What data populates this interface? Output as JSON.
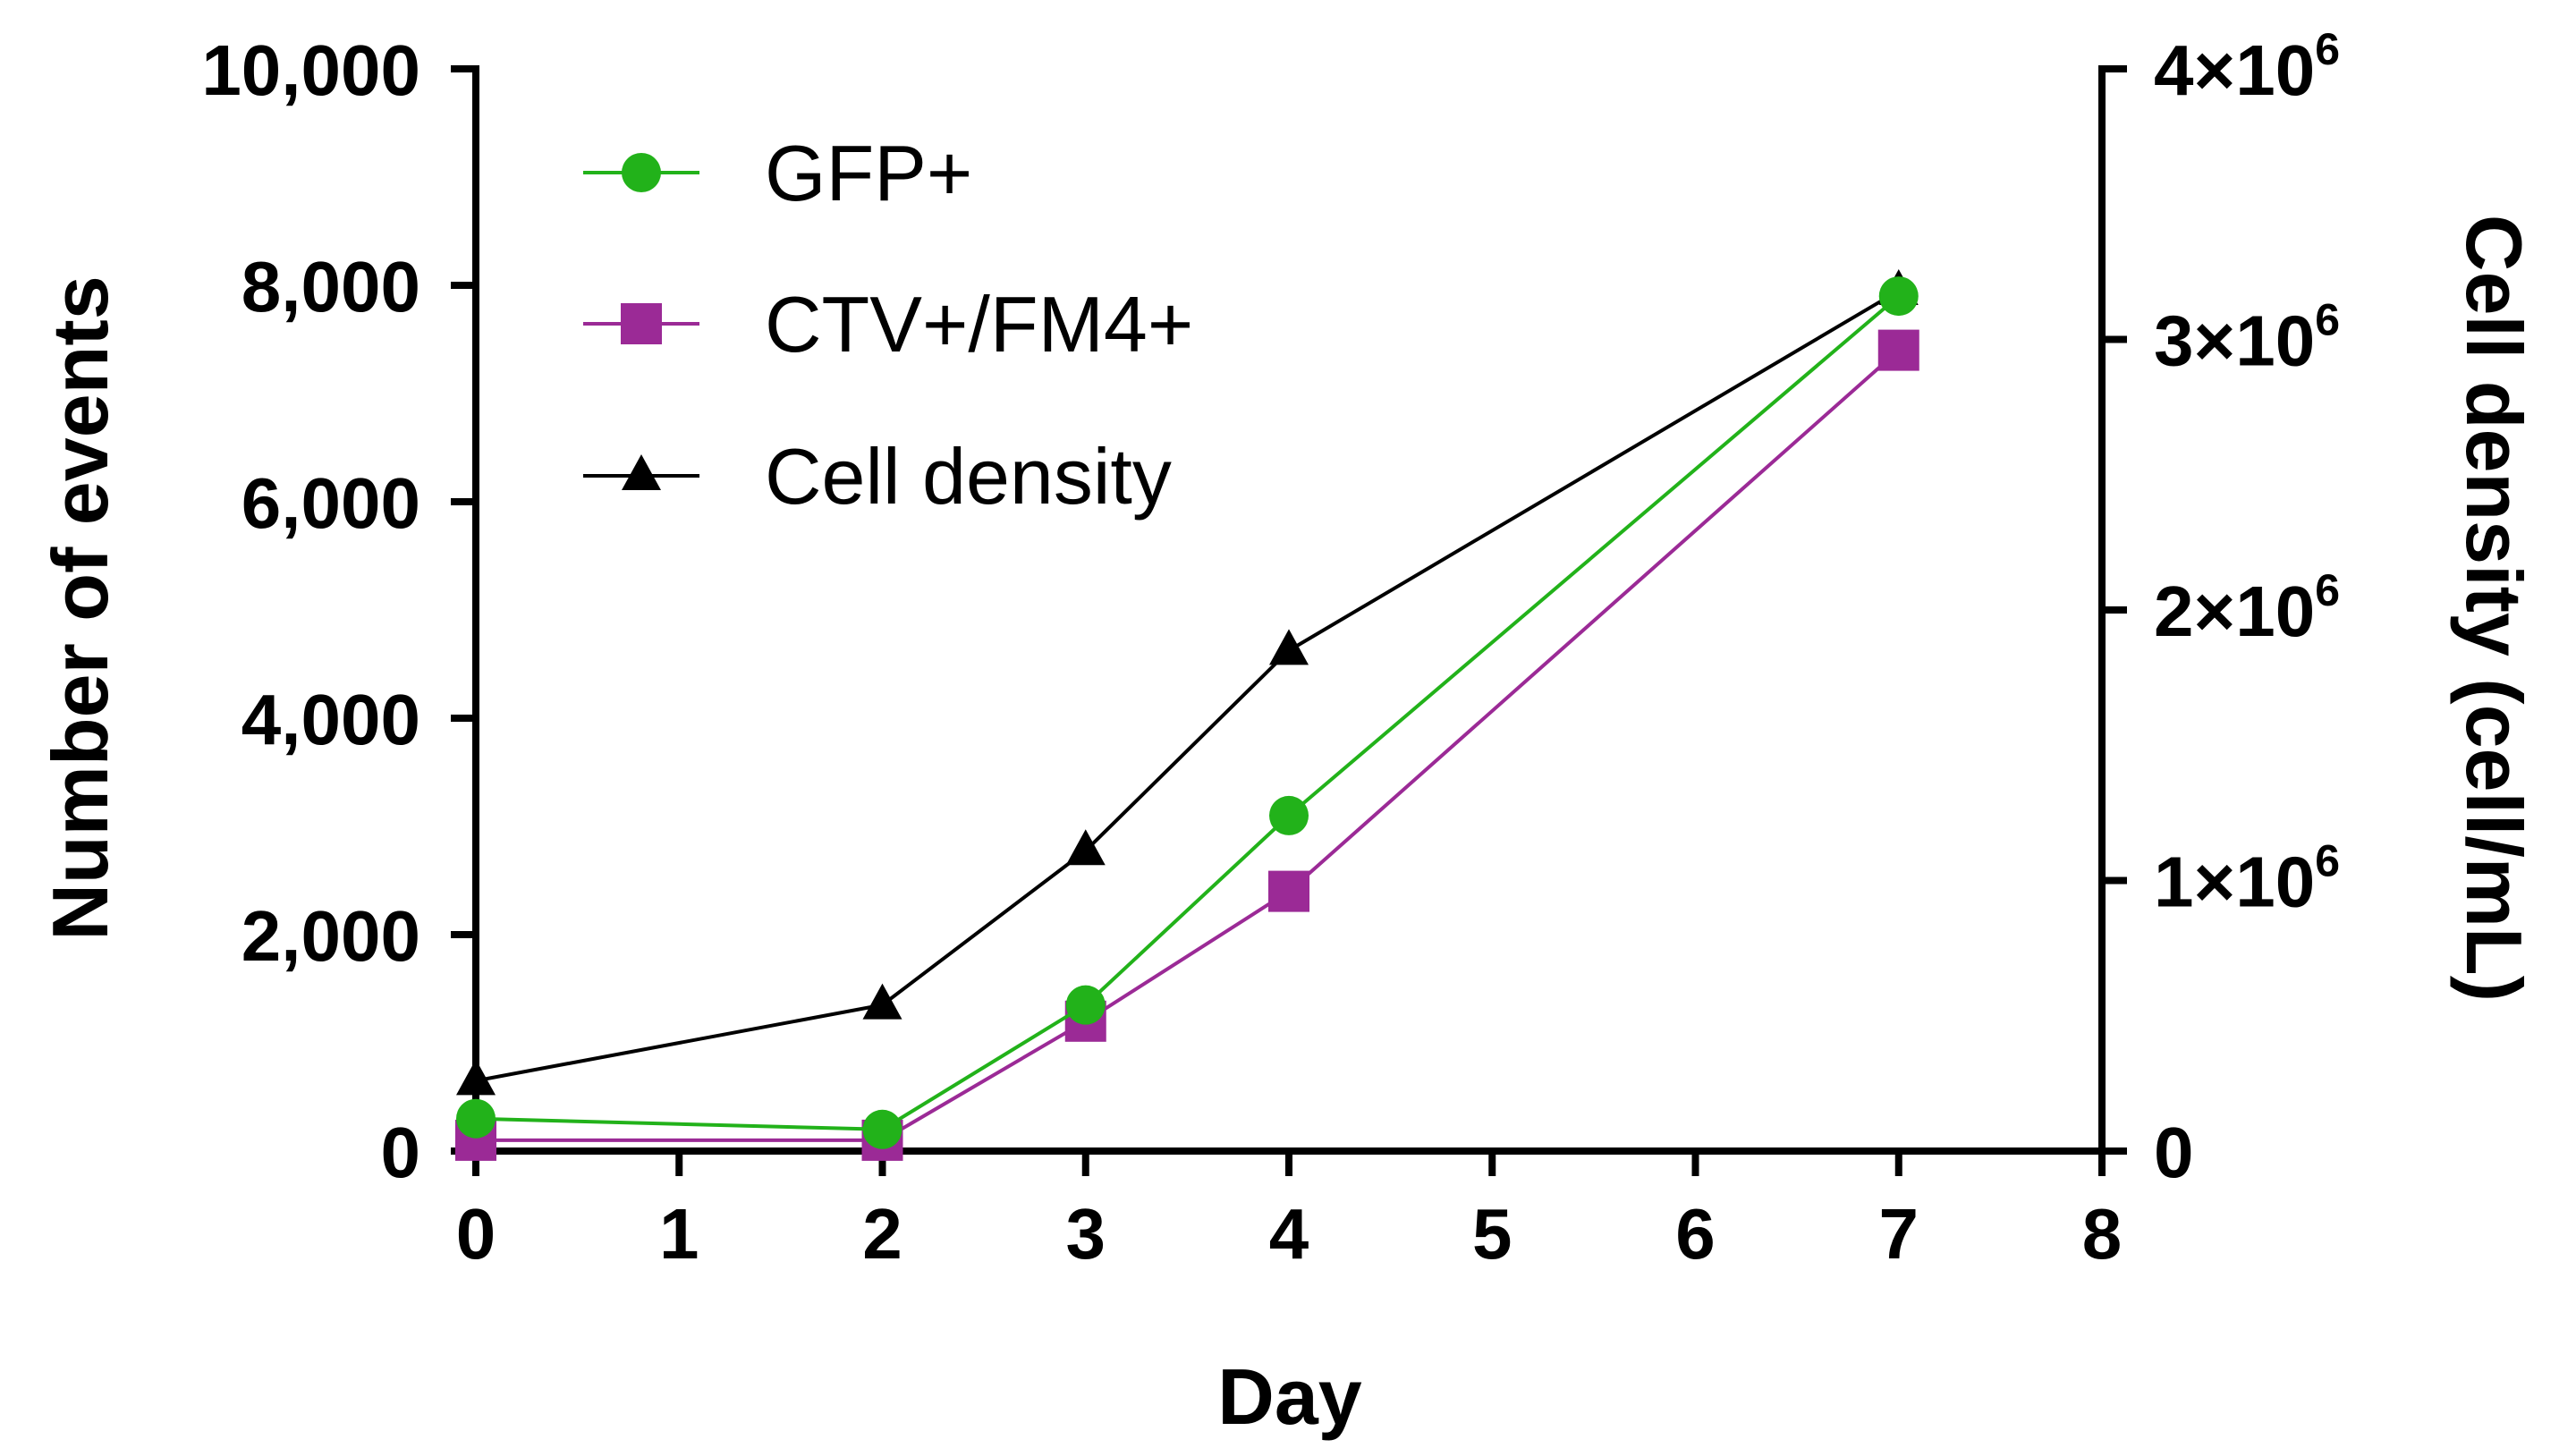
{
  "chart_data": {
    "type": "line",
    "title": "",
    "xlabel": "Day",
    "ylabel_left": "Number of events",
    "ylabel_right": "Cell density (cell/mL)",
    "xlim": [
      0,
      8
    ],
    "ylim_left": [
      0,
      10000
    ],
    "ylim_right": [
      0,
      4000000
    ],
    "x_ticks": [
      0,
      1,
      2,
      3,
      4,
      5,
      6,
      7,
      8
    ],
    "x_tick_labels": [
      "0",
      "1",
      "2",
      "3",
      "4",
      "5",
      "6",
      "7",
      "8"
    ],
    "y_left_ticks": [
      0,
      2000,
      4000,
      6000,
      8000,
      10000
    ],
    "y_left_tick_labels": [
      "0",
      "2,000",
      "4,000",
      "6,000",
      "8,000",
      "10,000"
    ],
    "y_right_ticks": [
      0,
      1000000,
      2000000,
      3000000,
      4000000
    ],
    "y_right_tick_labels": [
      {
        "base": "0",
        "exp": ""
      },
      {
        "base": "1×10",
        "exp": "6"
      },
      {
        "base": "2×10",
        "exp": "6"
      },
      {
        "base": "3×10",
        "exp": "6"
      },
      {
        "base": "4×10",
        "exp": "6"
      }
    ],
    "grid": false,
    "legend_position": "top-left",
    "series": [
      {
        "name": "GFP+",
        "axis": "left",
        "color": "#22b21a",
        "marker": "circle",
        "x": [
          0,
          2,
          3,
          4,
          7
        ],
        "y": [
          300,
          200,
          1350,
          3100,
          7900
        ]
      },
      {
        "name": "CTV+/FM4+",
        "axis": "left",
        "color": "#9b2a96",
        "marker": "square",
        "x": [
          0,
          2,
          3,
          4,
          7
        ],
        "y": [
          100,
          100,
          1200,
          2400,
          7400
        ]
      },
      {
        "name": "Cell density",
        "axis": "right",
        "color": "#000000",
        "marker": "triangle",
        "x": [
          0,
          2,
          3,
          4,
          7
        ],
        "y": [
          260000,
          540000,
          1110000,
          1850000,
          3180000
        ]
      }
    ]
  }
}
